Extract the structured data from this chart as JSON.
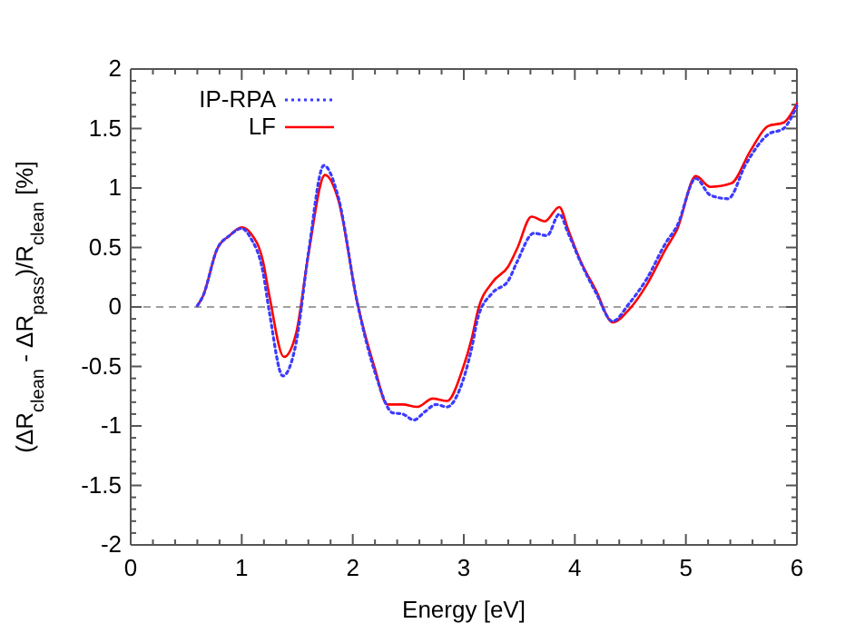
{
  "chart_data": {
    "type": "line",
    "xlabel": "Energy [eV]",
    "ylabel": "(ΔR$_{clean}$ - ΔR$_{pass}$)/R$_{clean}$ [%]",
    "xlim": [
      0,
      6
    ],
    "ylim": [
      -2,
      2
    ],
    "xticks": [
      0,
      {
        "value": 0.2,
        "label": null
      },
      {
        "value": 0.4,
        "label": null
      },
      {
        "value": 0.6,
        "label": null
      },
      {
        "value": 0.8,
        "label": null
      },
      1,
      {
        "value": 1.2,
        "label": null
      },
      {
        "value": 1.4,
        "label": null
      },
      {
        "value": 1.6,
        "label": null
      },
      {
        "value": 1.8,
        "label": null
      },
      2,
      {
        "value": 2.2,
        "label": null
      },
      {
        "value": 2.4,
        "label": null
      },
      {
        "value": 2.6,
        "label": null
      },
      {
        "value": 2.8,
        "label": null
      },
      3,
      {
        "value": 3.2,
        "label": null
      },
      {
        "value": 3.4,
        "label": null
      },
      {
        "value": 3.6,
        "label": null
      },
      {
        "value": 3.8,
        "label": null
      },
      4,
      {
        "value": 4.2,
        "label": null
      },
      {
        "value": 4.4,
        "label": null
      },
      {
        "value": 4.6,
        "label": null
      },
      {
        "value": 4.8,
        "label": null
      },
      5,
      {
        "value": 5.2,
        "label": null
      },
      {
        "value": 5.4,
        "label": null
      },
      {
        "value": 5.6,
        "label": null
      },
      {
        "value": 5.8,
        "label": null
      },
      6
    ],
    "yticks": [
      -2,
      {
        "value": -1.9,
        "label": null
      },
      {
        "value": -1.8,
        "label": null
      },
      {
        "value": -1.7,
        "label": null
      },
      {
        "value": -1.6,
        "label": null
      },
      -1.5,
      {
        "value": -1.4,
        "label": null
      },
      {
        "value": -1.3,
        "label": null
      },
      {
        "value": -1.2,
        "label": null
      },
      {
        "value": -1.1,
        "label": null
      },
      -1,
      {
        "value": -0.9,
        "label": null
      },
      {
        "value": -0.8,
        "label": null
      },
      {
        "value": -0.7,
        "label": null
      },
      {
        "value": -0.6,
        "label": null
      },
      -0.5,
      {
        "value": -0.4,
        "label": null
      },
      {
        "value": -0.3,
        "label": null
      },
      {
        "value": -0.2,
        "label": null
      },
      {
        "value": -0.1,
        "label": null
      },
      0,
      {
        "value": 0.1,
        "label": null
      },
      {
        "value": 0.2,
        "label": null
      },
      {
        "value": 0.3,
        "label": null
      },
      {
        "value": 0.4,
        "label": null
      },
      0.5,
      {
        "value": 0.6,
        "label": null
      },
      {
        "value": 0.7,
        "label": null
      },
      {
        "value": 0.8,
        "label": null
      },
      {
        "value": 0.9,
        "label": null
      },
      1,
      {
        "value": 1.1,
        "label": null
      },
      {
        "value": 1.2,
        "label": null
      },
      {
        "value": 1.3,
        "label": null
      },
      {
        "value": 1.4,
        "label": null
      },
      1.5,
      {
        "value": 1.6,
        "label": null
      },
      {
        "value": 1.7,
        "label": null
      },
      {
        "value": 1.8,
        "label": null
      },
      {
        "value": 1.9,
        "label": null
      },
      2
    ],
    "legend": "top left",
    "grid": false,
    "ref_lines": [
      {
        "axis": "y",
        "value": 0,
        "color": "#a0a0a0",
        "line_style": "dashed"
      }
    ],
    "series": [
      {
        "name": "IP-RPA",
        "color": "#3b3bff",
        "line_style": "dotted",
        "x": [
          0.6,
          0.65,
          0.78,
          0.89,
          1.0,
          1.08,
          1.19,
          1.25,
          1.37,
          1.49,
          1.6,
          1.74,
          1.87,
          2.04,
          2.2,
          2.36,
          2.45,
          2.55,
          2.65,
          2.75,
          2.85,
          2.96,
          3.07,
          3.13,
          3.26,
          3.4,
          3.48,
          3.63,
          3.75,
          3.86,
          3.94,
          4.05,
          4.19,
          4.34,
          4.49,
          4.65,
          4.82,
          4.92,
          5.09,
          5.22,
          5.38,
          5.54,
          5.74,
          5.88,
          6.0
        ],
        "values": [
          0.01,
          0.09,
          0.49,
          0.6,
          0.66,
          0.58,
          0.3,
          -0.05,
          -0.58,
          -0.3,
          0.45,
          1.19,
          0.92,
          0.04,
          -0.55,
          -0.89,
          -0.9,
          -0.95,
          -0.88,
          -0.82,
          -0.84,
          -0.7,
          -0.35,
          -0.08,
          0.12,
          0.22,
          0.38,
          0.62,
          0.6,
          0.78,
          0.62,
          0.38,
          0.12,
          -0.12,
          0.03,
          0.24,
          0.54,
          0.68,
          1.08,
          0.94,
          0.91,
          1.2,
          1.45,
          1.5,
          1.69
        ]
      },
      {
        "name": "LF",
        "color": "#ff0000",
        "line_style": "solid",
        "x": [
          0.6,
          0.65,
          0.78,
          0.89,
          1.0,
          1.08,
          1.19,
          1.25,
          1.38,
          1.49,
          1.6,
          1.75,
          1.87,
          2.04,
          2.2,
          2.31,
          2.45,
          2.58,
          2.72,
          2.85,
          2.99,
          3.07,
          3.13,
          3.26,
          3.4,
          3.48,
          3.61,
          3.73,
          3.86,
          3.94,
          4.05,
          4.19,
          4.34,
          4.49,
          4.65,
          4.82,
          4.92,
          5.09,
          5.22,
          5.41,
          5.58,
          5.74,
          5.88,
          6.0
        ],
        "values": [
          0.01,
          0.09,
          0.49,
          0.6,
          0.67,
          0.62,
          0.39,
          0.09,
          -0.42,
          -0.22,
          0.44,
          1.11,
          0.9,
          0.04,
          -0.52,
          -0.82,
          -0.82,
          -0.84,
          -0.77,
          -0.79,
          -0.52,
          -0.27,
          -0.02,
          0.21,
          0.34,
          0.49,
          0.76,
          0.72,
          0.84,
          0.65,
          0.39,
          0.14,
          -0.13,
          -0.02,
          0.19,
          0.49,
          0.65,
          1.1,
          1.01,
          1.04,
          1.31,
          1.52,
          1.55,
          1.71
        ]
      }
    ]
  }
}
